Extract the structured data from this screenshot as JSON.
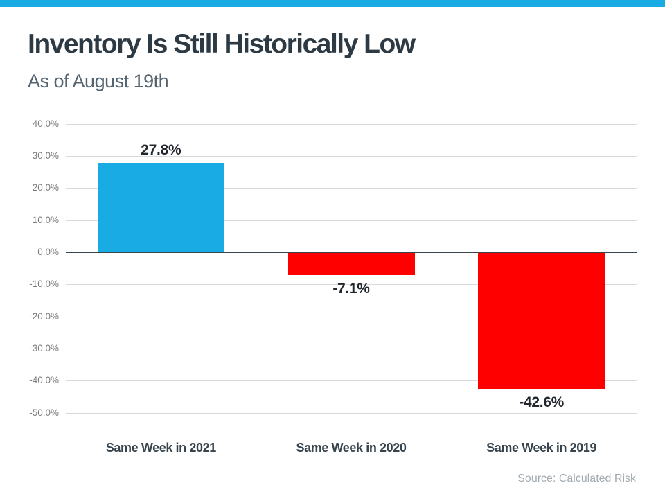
{
  "page": {
    "accent_color": "#19abe4",
    "background": "#ffffff"
  },
  "header": {
    "title": "Inventory Is Still Historically Low",
    "subtitle": "As of August 19th"
  },
  "source_note": "Source: Calculated Risk",
  "chart_data": {
    "type": "bar",
    "title": "Inventory Is Still Historically Low",
    "subtitle": "As of August 19th",
    "categories": [
      "Same Week in 2021",
      "Same Week in 2020",
      "Same Week in 2019"
    ],
    "values": [
      27.8,
      -7.1,
      -42.6
    ],
    "value_labels": [
      "27.8%",
      "-7.1%",
      "-42.6%"
    ],
    "positive_color": "#19abe4",
    "negative_color": "#fe0000",
    "y_ticks": [
      40,
      30,
      20,
      10,
      0,
      -10,
      -20,
      -30,
      -40,
      -50
    ],
    "y_tick_labels": [
      "40.0%",
      "30.0%",
      "20.0%",
      "10.0%",
      "0.0%",
      "-10.0%",
      "-20.0%",
      "-30.0%",
      "-40.0%",
      "-50.0%"
    ],
    "ylim": [
      -50,
      40
    ],
    "xlabel": "",
    "ylabel": "",
    "grid": true,
    "legend": false,
    "annotations": [
      "Source: Calculated Risk"
    ]
  }
}
